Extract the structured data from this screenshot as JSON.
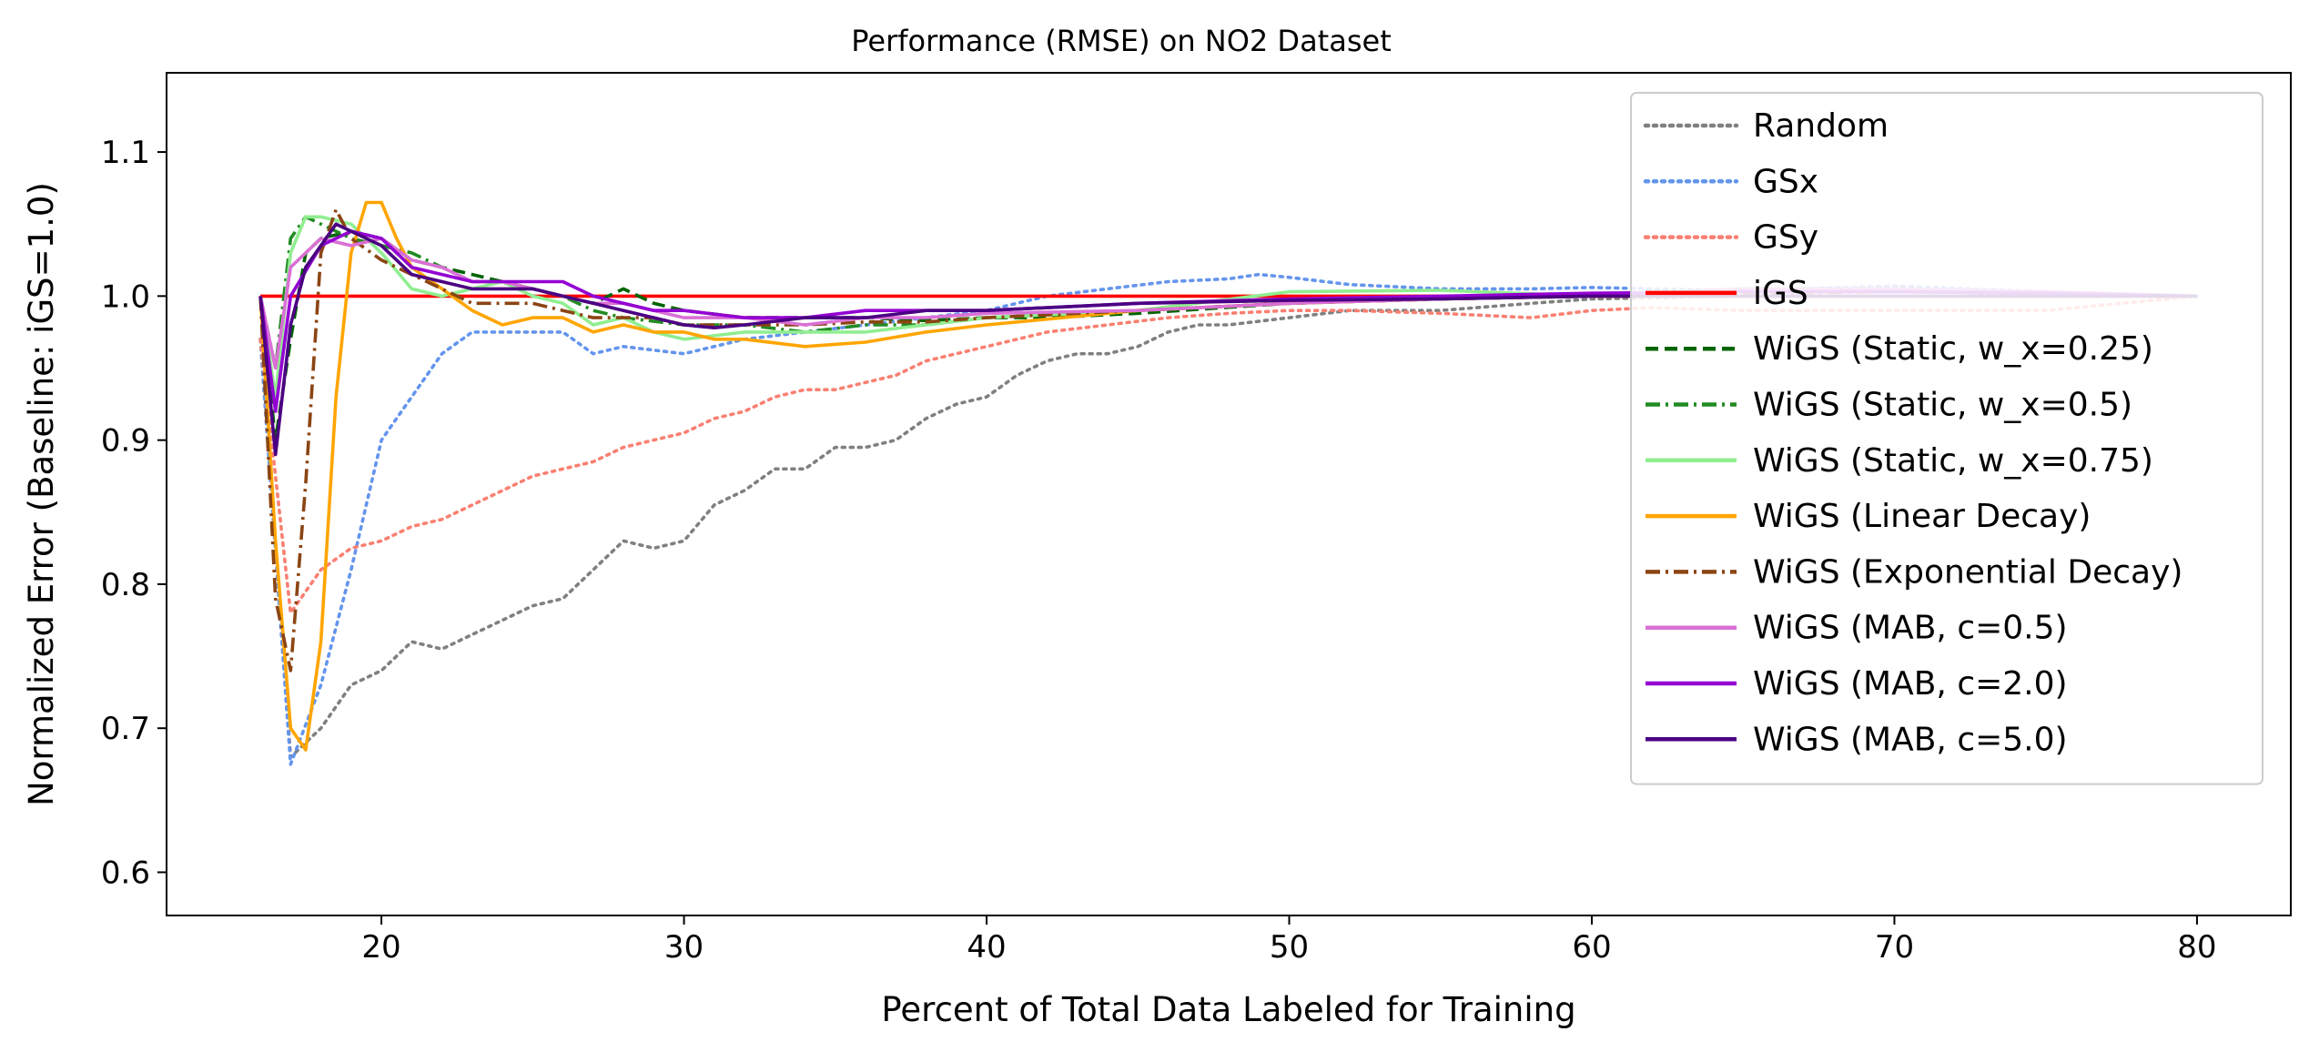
{
  "chart_data": {
    "type": "line",
    "title": "Performance (RMSE) on NO2 Dataset",
    "xlabel": "Percent of Total Data Labeled for Training",
    "ylabel": "Normalized Error (Baseline: iGS=1.0)",
    "xlim": [
      12.9,
      83.1
    ],
    "ylim": [
      0.57,
      1.155
    ],
    "xticks": [
      20,
      30,
      40,
      50,
      60,
      70,
      80
    ],
    "yticks": [
      0.6,
      0.7,
      0.8,
      0.9,
      1.0,
      1.1
    ],
    "xtick_labels": [
      "20",
      "30",
      "40",
      "50",
      "60",
      "70",
      "80"
    ],
    "ytick_labels": [
      "0.6",
      "0.7",
      "0.8",
      "0.9",
      "1.0",
      "1.1"
    ],
    "grid": false,
    "legend_position": "upper right",
    "series": [
      {
        "name": "Random",
        "color": "#808080",
        "dash": "dotted",
        "x": [
          16,
          17,
          18,
          19,
          20,
          21,
          22,
          23,
          24,
          25,
          26,
          27,
          28,
          29,
          30,
          31,
          32,
          33,
          34,
          35,
          36,
          37,
          38,
          39,
          40,
          41,
          42,
          43,
          44,
          45,
          46,
          47,
          48,
          50,
          52,
          55,
          58,
          60,
          65,
          70,
          75,
          80
        ],
        "y": [
          0.97,
          0.68,
          0.7,
          0.73,
          0.74,
          0.76,
          0.755,
          0.765,
          0.775,
          0.785,
          0.79,
          0.81,
          0.83,
          0.825,
          0.83,
          0.855,
          0.865,
          0.88,
          0.88,
          0.895,
          0.895,
          0.9,
          0.915,
          0.925,
          0.93,
          0.945,
          0.955,
          0.96,
          0.96,
          0.965,
          0.975,
          0.98,
          0.98,
          0.985,
          0.99,
          0.99,
          0.995,
          0.998,
          1.0,
          1.0,
          1.0,
          1.0
        ]
      },
      {
        "name": "GSx",
        "color": "#6495ED",
        "dash": "dotted",
        "x": [
          16,
          17,
          18,
          19,
          20,
          21,
          22,
          23,
          24,
          25,
          26,
          27,
          28,
          30,
          32,
          34,
          36,
          38,
          40,
          42,
          44,
          46,
          48,
          49,
          50,
          52,
          55,
          58,
          60,
          62,
          65,
          70,
          75,
          80
        ],
        "y": [
          0.97,
          0.675,
          0.73,
          0.81,
          0.9,
          0.93,
          0.96,
          0.975,
          0.975,
          0.975,
          0.975,
          0.96,
          0.965,
          0.96,
          0.97,
          0.975,
          0.98,
          0.985,
          0.99,
          1.0,
          1.005,
          1.01,
          1.012,
          1.015,
          1.013,
          1.008,
          1.005,
          1.005,
          1.006,
          1.005,
          1.004,
          1.007,
          1.003,
          1.0
        ]
      },
      {
        "name": "GSy",
        "color": "#FA8072",
        "dash": "dotted",
        "x": [
          16,
          17,
          18,
          19,
          20,
          21,
          22,
          23,
          24,
          25,
          26,
          27,
          28,
          29,
          30,
          31,
          32,
          33,
          34,
          35,
          36,
          37,
          38,
          40,
          42,
          44,
          46,
          48,
          50,
          52,
          55,
          58,
          60,
          62,
          65,
          70,
          75,
          80
        ],
        "y": [
          0.97,
          0.78,
          0.81,
          0.825,
          0.83,
          0.84,
          0.845,
          0.855,
          0.865,
          0.875,
          0.88,
          0.885,
          0.895,
          0.9,
          0.905,
          0.915,
          0.92,
          0.93,
          0.935,
          0.935,
          0.94,
          0.945,
          0.955,
          0.965,
          0.975,
          0.98,
          0.985,
          0.988,
          0.99,
          0.99,
          0.988,
          0.985,
          0.99,
          0.992,
          0.99,
          0.99,
          0.99,
          1.0
        ]
      },
      {
        "name": "iGS",
        "color": "#FF0000",
        "dash": "solid",
        "x": [
          16,
          80
        ],
        "y": [
          1.0,
          1.0
        ]
      },
      {
        "name": "WiGS (Static, w_x=0.25)",
        "color": "#006400",
        "dash": "dashed",
        "x": [
          16,
          16.5,
          17,
          17.5,
          18,
          19,
          20,
          21,
          22,
          23,
          24,
          25,
          26,
          27,
          28,
          29,
          30,
          32,
          34,
          36,
          38,
          40,
          42,
          45,
          50,
          55,
          60,
          65,
          70,
          75,
          80
        ],
        "y": [
          1.0,
          0.9,
          0.97,
          1.03,
          1.04,
          1.045,
          1.04,
          1.025,
          1.02,
          1.015,
          1.01,
          1.005,
          1.0,
          0.995,
          1.005,
          0.995,
          0.99,
          0.985,
          0.985,
          0.985,
          0.983,
          0.985,
          0.985,
          0.988,
          0.995,
          0.998,
          1.0,
          1.005,
          1.005,
          1.003,
          1.0
        ]
      },
      {
        "name": "WiGS (Static, w_x=0.5)",
        "color": "#228B22",
        "dash": "dashdot",
        "x": [
          16,
          16.5,
          17,
          17.5,
          18,
          19,
          20,
          21,
          22,
          23,
          24,
          25,
          26,
          27,
          28,
          30,
          32,
          34,
          36,
          38,
          40,
          45,
          50,
          55,
          60,
          65,
          70,
          75,
          80
        ],
        "y": [
          1.0,
          0.95,
          1.04,
          1.055,
          1.05,
          1.04,
          1.035,
          1.03,
          1.02,
          1.01,
          1.01,
          1.005,
          1.0,
          0.99,
          0.985,
          0.98,
          0.98,
          0.975,
          0.98,
          0.98,
          0.985,
          0.99,
          0.995,
          0.998,
          1.0,
          1.003,
          1.004,
          1.002,
          1.0
        ]
      },
      {
        "name": "WiGS (Static, w_x=0.75)",
        "color": "#90EE90",
        "dash": "solid",
        "x": [
          16,
          16.5,
          17,
          17.5,
          18,
          19,
          20,
          21,
          22,
          23,
          24,
          25,
          26,
          27,
          28,
          29,
          30,
          32,
          34,
          36,
          38,
          40,
          45,
          50,
          55,
          60,
          65,
          70,
          75,
          80
        ],
        "y": [
          1.0,
          0.93,
          1.03,
          1.055,
          1.055,
          1.05,
          1.03,
          1.005,
          1.0,
          1.005,
          1.01,
          1.0,
          0.995,
          0.98,
          0.985,
          0.975,
          0.97,
          0.975,
          0.975,
          0.975,
          0.98,
          0.985,
          0.99,
          1.003,
          1.004,
          1.0,
          1.005,
          1.003,
          1.002,
          1.0
        ]
      },
      {
        "name": "WiGS (Linear Decay)",
        "color": "#FFA500",
        "dash": "solid",
        "x": [
          16,
          16.5,
          17,
          17.5,
          18,
          18.5,
          19,
          19.5,
          20,
          20.5,
          21,
          22,
          23,
          24,
          25,
          26,
          27,
          28,
          29,
          30,
          31,
          32,
          34,
          36,
          38,
          40,
          45,
          50,
          55,
          60,
          65,
          70,
          75,
          80
        ],
        "y": [
          1.0,
          0.83,
          0.7,
          0.685,
          0.76,
          0.93,
          1.03,
          1.065,
          1.065,
          1.04,
          1.02,
          1.005,
          0.99,
          0.98,
          0.985,
          0.985,
          0.975,
          0.98,
          0.975,
          0.975,
          0.97,
          0.97,
          0.965,
          0.968,
          0.975,
          0.98,
          0.99,
          0.995,
          0.998,
          1.0,
          1.0,
          1.0,
          1.0,
          1.0
        ]
      },
      {
        "name": "WiGS (Exponential Decay)",
        "color": "#8B4513",
        "dash": "dashdot",
        "x": [
          16,
          16.5,
          17,
          17.5,
          18,
          18.5,
          19,
          20,
          21,
          22,
          23,
          24,
          25,
          26,
          27,
          28,
          29,
          30,
          32,
          34,
          36,
          38,
          40,
          45,
          50,
          55,
          60,
          65,
          70,
          75,
          80
        ],
        "y": [
          1.0,
          0.79,
          0.74,
          0.87,
          1.03,
          1.06,
          1.04,
          1.025,
          1.015,
          1.005,
          0.995,
          0.995,
          0.995,
          0.99,
          0.985,
          0.985,
          0.985,
          0.98,
          0.98,
          0.98,
          0.982,
          0.982,
          0.985,
          0.99,
          0.995,
          0.998,
          1.0,
          1.002,
          1.003,
          1.002,
          1.0
        ]
      },
      {
        "name": "WiGS (MAB, c=0.5)",
        "color": "#DA70D6",
        "dash": "solid",
        "x": [
          16,
          16.5,
          17,
          18,
          19,
          20,
          21,
          22,
          23,
          24,
          25,
          26,
          27,
          28,
          29,
          30,
          32,
          34,
          36,
          38,
          40,
          45,
          50,
          55,
          60,
          65,
          70,
          75,
          80
        ],
        "y": [
          1.0,
          0.95,
          1.02,
          1.04,
          1.035,
          1.04,
          1.025,
          1.02,
          1.01,
          1.01,
          1.005,
          1.0,
          0.995,
          0.995,
          0.99,
          0.985,
          0.985,
          0.98,
          0.985,
          0.985,
          0.988,
          0.99,
          0.995,
          0.998,
          1.0,
          1.005,
          1.005,
          1.003,
          1.0
        ]
      },
      {
        "name": "WiGS (MAB, c=2.0)",
        "color": "#9400D3",
        "dash": "solid",
        "x": [
          16,
          16.5,
          17,
          18,
          19,
          20,
          21,
          22,
          23,
          24,
          25,
          26,
          27,
          28,
          29,
          30,
          32,
          34,
          36,
          38,
          40,
          45,
          50,
          55,
          60,
          65,
          70,
          75,
          80
        ],
        "y": [
          1.0,
          0.92,
          1.0,
          1.035,
          1.045,
          1.04,
          1.02,
          1.015,
          1.01,
          1.01,
          1.01,
          1.01,
          1.0,
          0.995,
          0.99,
          0.99,
          0.985,
          0.985,
          0.99,
          0.99,
          0.99,
          0.995,
          0.998,
          1.0,
          1.002,
          1.003,
          1.003,
          1.002,
          1.0
        ]
      },
      {
        "name": "WiGS (MAB, c=5.0)",
        "color": "#4B0082",
        "dash": "solid",
        "x": [
          16,
          16.5,
          17,
          17.5,
          18,
          18.5,
          19,
          20,
          21,
          22,
          23,
          24,
          25,
          26,
          27,
          28,
          29,
          30,
          31,
          32,
          34,
          36,
          38,
          40,
          45,
          50,
          55,
          60,
          65,
          70,
          75,
          80
        ],
        "y": [
          1.0,
          0.89,
          0.98,
          1.02,
          1.035,
          1.05,
          1.045,
          1.035,
          1.015,
          1.01,
          1.005,
          1.005,
          1.005,
          1.0,
          0.995,
          0.99,
          0.985,
          0.98,
          0.978,
          0.98,
          0.985,
          0.985,
          0.99,
          0.99,
          0.995,
          0.997,
          0.998,
          1.0,
          1.0,
          1.0,
          1.0,
          1.0
        ]
      }
    ]
  }
}
